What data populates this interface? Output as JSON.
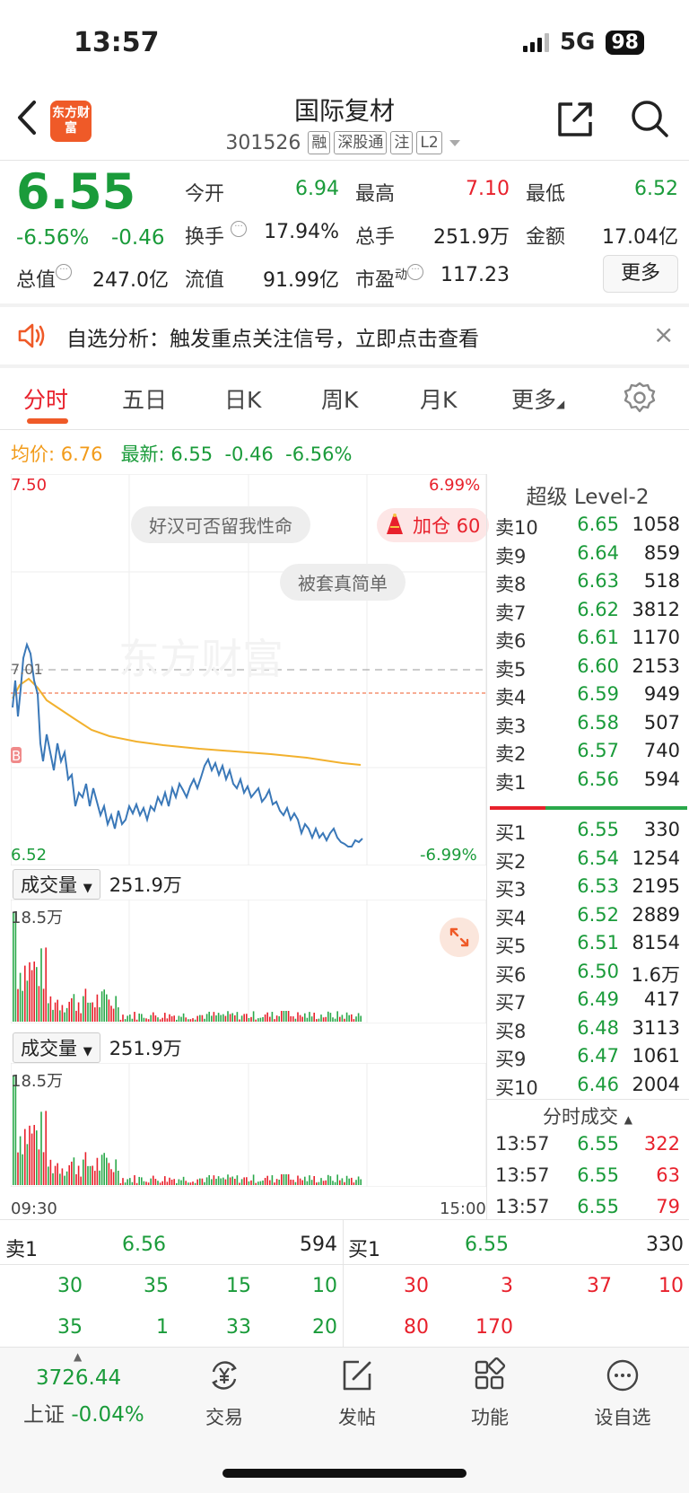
{
  "status": {
    "time": "13:57",
    "network": "5G",
    "battery": "98"
  },
  "header": {
    "name": "国际复材",
    "code": "301526",
    "tags": [
      "融",
      "深股通",
      "注",
      "L2"
    ],
    "logo_text": "东方财富"
  },
  "quote": {
    "price": "6.55",
    "change_pct": "-6.56%",
    "change_val": "-0.46",
    "open_label": "今开",
    "open": "6.94",
    "high_label": "最高",
    "high": "7.10",
    "low_label": "最低",
    "low": "6.52",
    "turnover_label": "换手",
    "turnover": "17.94%",
    "volume_label": "总手",
    "volume": "251.9万",
    "amount_label": "金额",
    "amount": "17.04亿",
    "mktcap_label": "总值",
    "mktcap": "247.0亿",
    "float_label": "流值",
    "float_cap": "91.99亿",
    "pe_label": "市盈",
    "pe_sup": "动",
    "pe": "117.23",
    "more": "更多"
  },
  "alert": {
    "text": "自选分析：触发重点关注信号，立即点击查看",
    "close": "×"
  },
  "tabs": [
    "分时",
    "五日",
    "日K",
    "周K",
    "月K",
    "更多"
  ],
  "legend": {
    "avg_label": "均价:",
    "avg": "6.76",
    "latest_label": "最新:",
    "latest": "6.55",
    "latest_chg": "-0.46",
    "latest_pct": "-6.56%"
  },
  "chart": {
    "y_top": "7.50",
    "y_top_pct": "6.99%",
    "y_bottom": "6.52",
    "y_bottom_pct": "-6.99%",
    "ref_price": "7.01",
    "bubble1": "好汉可否留我性命",
    "bubble2": "被套真简单",
    "jiacang": "加仓 60",
    "watermark": "东方财富",
    "marker_b": "B",
    "time_start": "09:30",
    "time_end": "15:00"
  },
  "volume_panels": [
    {
      "selector": "成交量",
      "total": "251.9万",
      "max": "18.5万"
    },
    {
      "selector": "成交量",
      "total": "251.9万",
      "max": "18.5万"
    }
  ],
  "orderbook": {
    "title": "超级 Level-2",
    "asks": [
      {
        "name": "卖10",
        "price": "6.65",
        "vol": "1058"
      },
      {
        "name": "卖9",
        "price": "6.64",
        "vol": "859"
      },
      {
        "name": "卖8",
        "price": "6.63",
        "vol": "518"
      },
      {
        "name": "卖7",
        "price": "6.62",
        "vol": "3812"
      },
      {
        "name": "卖6",
        "price": "6.61",
        "vol": "1170"
      },
      {
        "name": "卖5",
        "price": "6.60",
        "vol": "2153"
      },
      {
        "name": "卖4",
        "price": "6.59",
        "vol": "949"
      },
      {
        "name": "卖3",
        "price": "6.58",
        "vol": "507"
      },
      {
        "name": "卖2",
        "price": "6.57",
        "vol": "740"
      },
      {
        "name": "卖1",
        "price": "6.56",
        "vol": "594"
      }
    ],
    "bids": [
      {
        "name": "买1",
        "price": "6.55",
        "vol": "330"
      },
      {
        "name": "买2",
        "price": "6.54",
        "vol": "1254"
      },
      {
        "name": "买3",
        "price": "6.53",
        "vol": "2195"
      },
      {
        "name": "买4",
        "price": "6.52",
        "vol": "2889"
      },
      {
        "name": "买5",
        "price": "6.51",
        "vol": "8154"
      },
      {
        "name": "买6",
        "price": "6.50",
        "vol": "1.6万"
      },
      {
        "name": "买7",
        "price": "6.49",
        "vol": "417"
      },
      {
        "name": "买8",
        "price": "6.48",
        "vol": "3113"
      },
      {
        "name": "买9",
        "price": "6.47",
        "vol": "1061"
      },
      {
        "name": "买10",
        "price": "6.46",
        "vol": "2004"
      }
    ],
    "ticks_title": "分时成交",
    "ticks": [
      {
        "time": "13:57",
        "price": "6.55",
        "vol": "322"
      },
      {
        "time": "13:57",
        "price": "6.55",
        "vol": "63"
      },
      {
        "time": "13:57",
        "price": "6.55",
        "vol": "79"
      }
    ]
  },
  "quickbook": {
    "sell_label": "卖1",
    "sell_price": "6.56",
    "sell_vol": "594",
    "buy_label": "买1",
    "buy_price": "6.55",
    "buy_vol": "330",
    "sell_row1": [
      "30",
      "35",
      "15",
      "10"
    ],
    "sell_row2": [
      "35",
      "1",
      "33",
      "20"
    ],
    "buy_row1": [
      "30",
      "3",
      "37",
      "10"
    ],
    "buy_row2": [
      "80",
      "170"
    ]
  },
  "bottom_nav": {
    "index_value": "3726.44",
    "index_name": "上证",
    "index_chg": "-0.04%",
    "items": [
      "交易",
      "发帖",
      "功能",
      "设自选"
    ]
  }
}
